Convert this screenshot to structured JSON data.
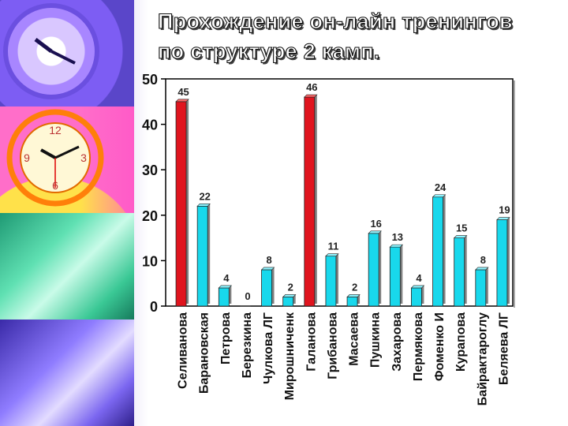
{
  "title_line1": "Прохождение он-лайн тренингов",
  "title_line2": "по структуре 2 камп.",
  "chart_data": {
    "type": "bar",
    "categories": [
      "Селиванова",
      "Барановская",
      "Петрова",
      "Березкина",
      "Чулкова ЛГ",
      "Мирошниченк",
      "Галанова",
      "Грибанова",
      "Масаева",
      "Пушкина",
      "Захарова",
      "Пермякова",
      "Фоменко И",
      "Курапова",
      "Байрактароглу",
      "Беляева ЛГ"
    ],
    "values": [
      45,
      22,
      4,
      0,
      8,
      2,
      46,
      11,
      2,
      16,
      13,
      4,
      24,
      15,
      8,
      19
    ],
    "highlight_indices": [
      0,
      6
    ],
    "ylim": [
      0,
      50
    ],
    "yticks": [
      0,
      10,
      20,
      30,
      40,
      50
    ],
    "colors": {
      "highlight": "#e0141e",
      "normal": "#18d8ec",
      "highlight_top": "#ff6a6a",
      "normal_top": "#8ff4ff"
    }
  }
}
